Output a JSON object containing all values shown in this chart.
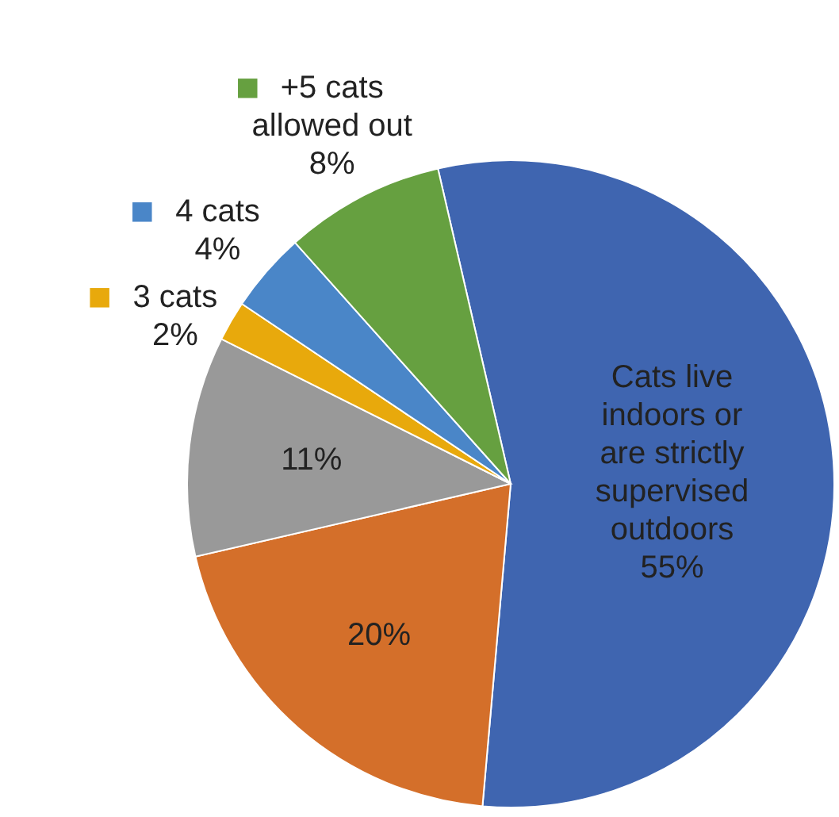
{
  "chart_data": {
    "type": "pie",
    "categories": [
      "Cats live indoors or are strictly supervised outdoors",
      null,
      null,
      "3 cats",
      "4 cats",
      "+5 cats allowed out"
    ],
    "values": [
      55,
      20,
      11,
      2,
      4,
      8
    ],
    "value_labels": [
      "55%",
      "20%",
      "11%",
      "2%",
      "4%",
      "8%"
    ],
    "colors": [
      "#3f65b0",
      "#d46f2a",
      "#999999",
      "#e8a90c",
      "#4a86c8",
      "#66a040"
    ],
    "legend": "top left"
  }
}
